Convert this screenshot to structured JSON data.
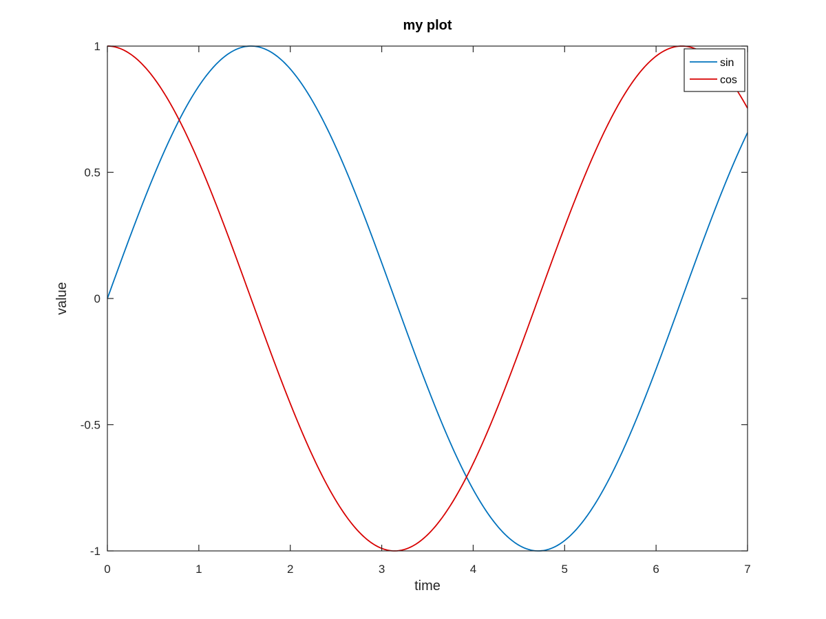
{
  "chart_data": {
    "type": "line",
    "title": "my plot",
    "xlabel": "time",
    "ylabel": "value",
    "xlim": [
      0,
      7
    ],
    "ylim": [
      -1,
      1
    ],
    "xticks": [
      0,
      1,
      2,
      3,
      4,
      5,
      6,
      7
    ],
    "xtick_labels": [
      "0",
      "1",
      "2",
      "3",
      "4",
      "5",
      "6",
      "7"
    ],
    "yticks": [
      -1,
      -0.5,
      0,
      0.5,
      1
    ],
    "ytick_labels": [
      "-1",
      "-0.5",
      "0",
      "0.5",
      "1"
    ],
    "grid": false,
    "legend_position": "top-right",
    "series": [
      {
        "name": "sin",
        "color": "#0072bd",
        "x": [
          0,
          0.25,
          0.5,
          0.75,
          1,
          1.25,
          1.5,
          1.75,
          2,
          2.25,
          2.5,
          2.75,
          3,
          3.25,
          3.5,
          3.75,
          4,
          4.25,
          4.5,
          4.75,
          5,
          5.25,
          5.5,
          5.75,
          6,
          6.25,
          6.5,
          6.75,
          7
        ],
        "y": [
          0,
          0.247,
          0.479,
          0.682,
          0.841,
          0.949,
          0.997,
          0.984,
          0.909,
          0.778,
          0.598,
          0.382,
          0.141,
          -0.108,
          -0.351,
          -0.572,
          -0.757,
          -0.895,
          -0.978,
          -0.999,
          -0.959,
          -0.859,
          -0.706,
          -0.508,
          -0.279,
          -0.033,
          0.215,
          0.45,
          0.657
        ]
      },
      {
        "name": "cos",
        "color": "#d70000",
        "x": [
          0,
          0.25,
          0.5,
          0.75,
          1,
          1.25,
          1.5,
          1.75,
          2,
          2.25,
          2.5,
          2.75,
          3,
          3.25,
          3.5,
          3.75,
          4,
          4.25,
          4.5,
          4.75,
          5,
          5.25,
          5.5,
          5.75,
          6,
          6.25,
          6.5,
          6.75,
          7
        ],
        "y": [
          1,
          0.969,
          0.878,
          0.732,
          0.54,
          0.315,
          0.071,
          -0.178,
          -0.416,
          -0.628,
          -0.801,
          -0.924,
          -0.99,
          -0.994,
          -0.936,
          -0.82,
          -0.654,
          -0.446,
          -0.211,
          0.038,
          0.284,
          0.512,
          0.709,
          0.861,
          0.96,
          0.999,
          0.977,
          0.893,
          0.754
        ]
      }
    ]
  }
}
